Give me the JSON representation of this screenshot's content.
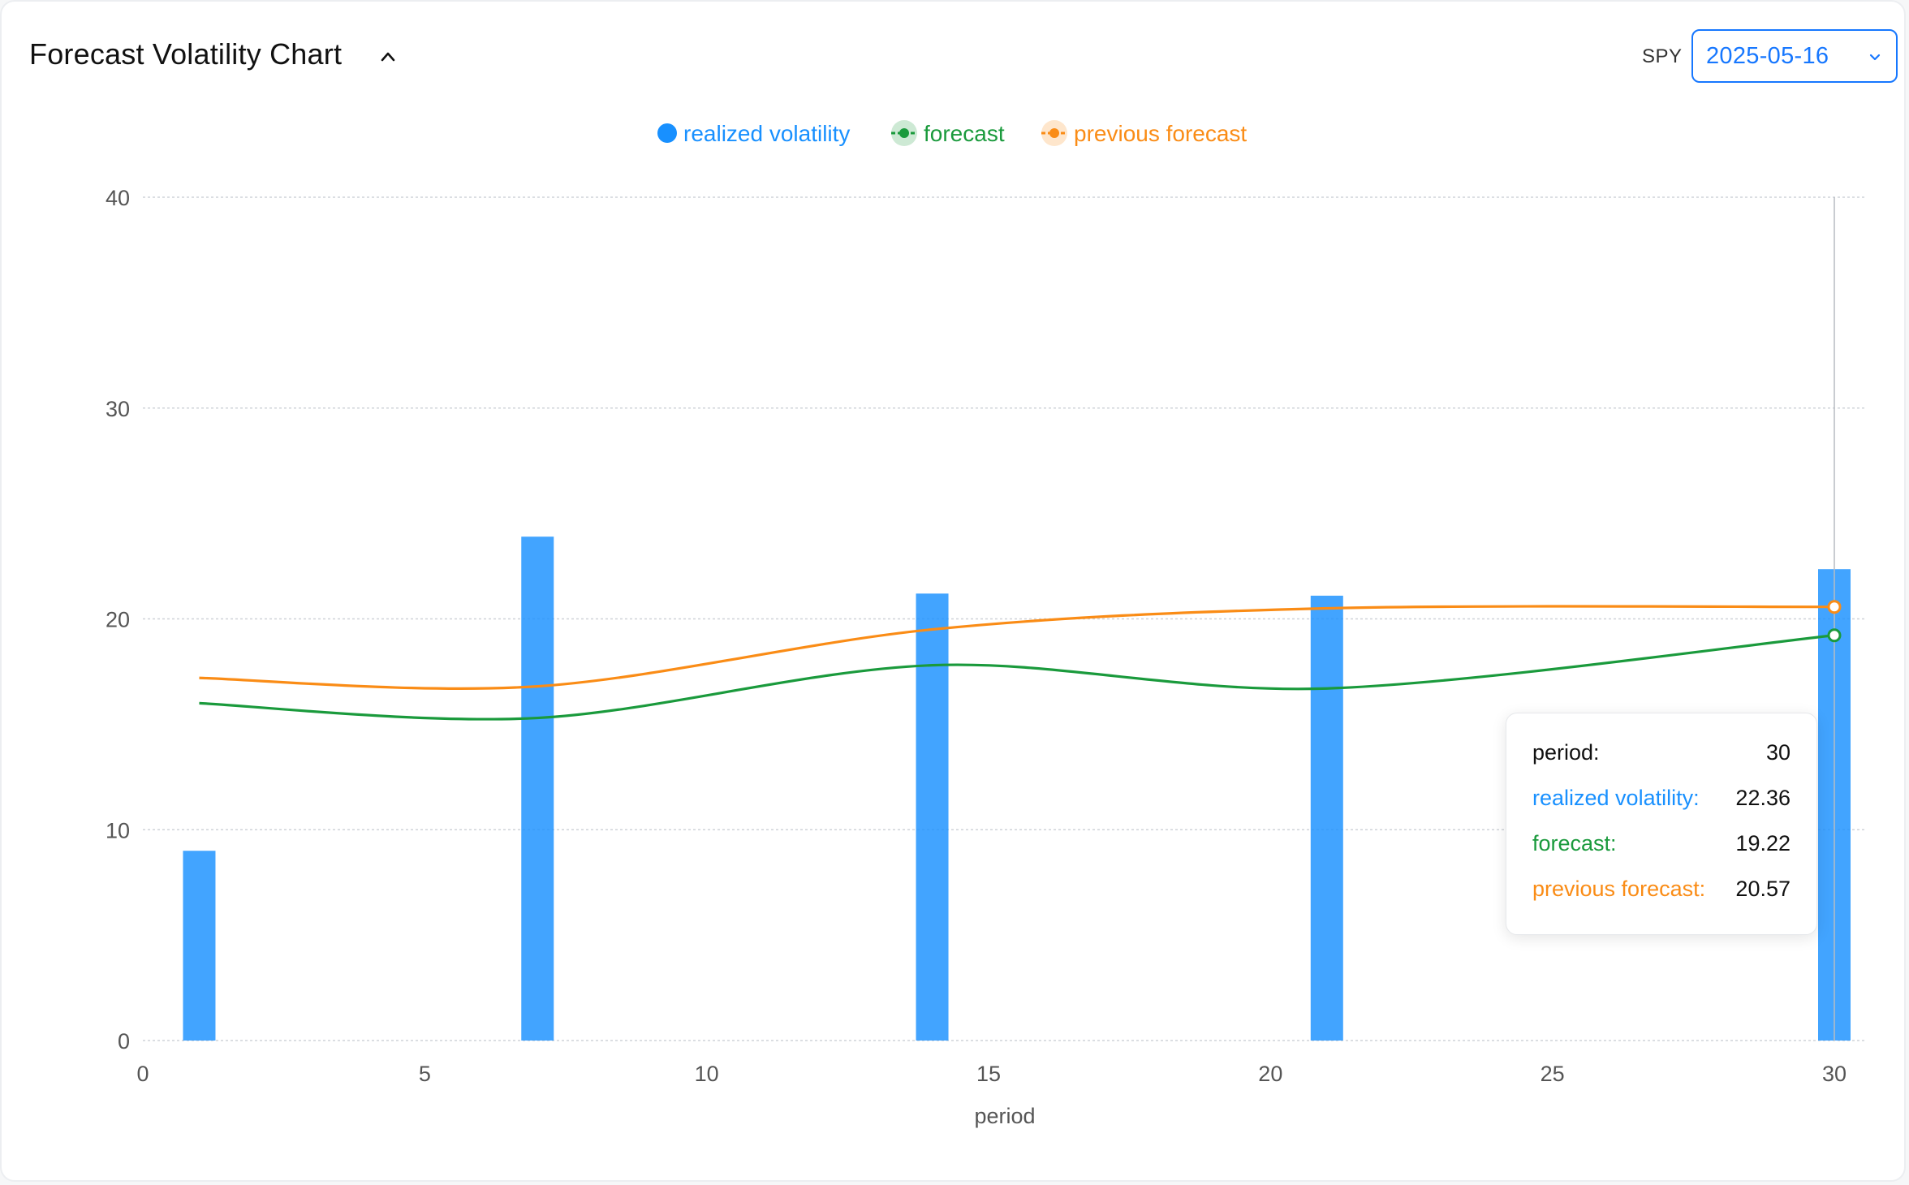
{
  "header": {
    "title": "Forecast Volatility Chart",
    "ticker": "SPY",
    "date": "2025-05-16"
  },
  "colors": {
    "realized": "#1890ff",
    "forecast": "#1a9a3c",
    "previous": "#fa8c16",
    "grid": "#cfd3d8"
  },
  "chart_data": {
    "type": "bar",
    "xlabel": "period",
    "ylabel": "",
    "xlim": [
      0,
      30
    ],
    "ylim": [
      0,
      40
    ],
    "xticks": [
      0,
      5,
      10,
      15,
      20,
      25,
      30
    ],
    "yticks": [
      0,
      10,
      20,
      30,
      40
    ],
    "grid": true,
    "legend_position": "top-center",
    "x": [
      1,
      7,
      14,
      21,
      30
    ],
    "series": [
      {
        "name": "realized volatility",
        "kind": "bar",
        "color": "#1890ff",
        "values": [
          9.0,
          23.9,
          21.2,
          21.1,
          22.36
        ]
      },
      {
        "name": "forecast",
        "kind": "line",
        "color": "#1a9a3c",
        "values": [
          16.0,
          15.3,
          17.8,
          16.7,
          19.22
        ]
      },
      {
        "name": "previous forecast",
        "kind": "line",
        "color": "#fa8c16",
        "values": [
          17.2,
          16.8,
          19.5,
          20.5,
          20.57
        ]
      }
    ],
    "tooltip": {
      "rows": [
        {
          "label": "period:",
          "value": "30",
          "color": "#111111"
        },
        {
          "label": "realized volatility:",
          "value": "22.36",
          "color": "#1890ff"
        },
        {
          "label": "forecast:",
          "value": "19.22",
          "color": "#1a9a3c"
        },
        {
          "label": "previous forecast:",
          "value": "20.57",
          "color": "#fa8c16"
        }
      ]
    }
  }
}
